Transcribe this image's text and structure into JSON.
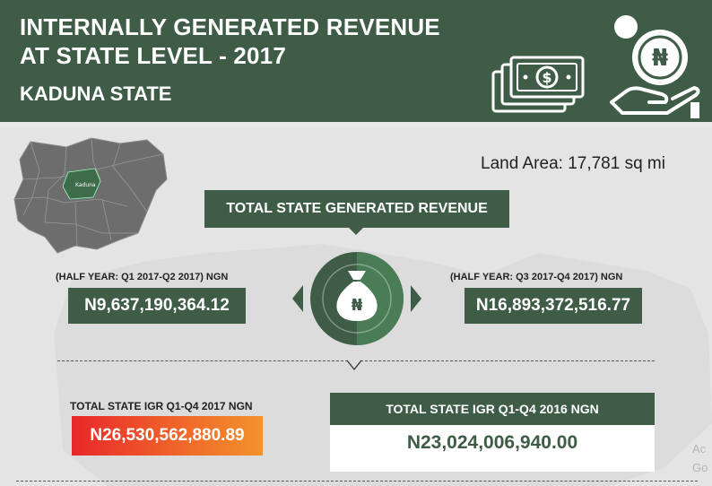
{
  "header": {
    "title_line1": "INTERNALLY GENERATED REVENUE",
    "title_line2": "AT STATE LEVEL - 2017",
    "subtitle": "KADUNA STATE"
  },
  "map": {
    "highlight_label": "Kaduna"
  },
  "land_area": "Land Area: 17,781 sq mi",
  "total_banner": "TOTAL STATE GENERATED REVENUE",
  "half1": {
    "label": "(HALF YEAR: Q1 2017-Q2 2017) NGN",
    "value": "N9,637,190,364.12"
  },
  "half2": {
    "label": "(HALF YEAR: Q3 2017-Q4 2017) NGN",
    "value": "N16,893,372,516.77"
  },
  "igr_2017": {
    "label": "TOTAL STATE IGR Q1-Q4 2017 NGN",
    "value": "N26,530,562,880.89"
  },
  "igr_2016": {
    "label": "TOTAL STATE IGR Q1-Q4 2016 NGN",
    "value": "N23,024,006,940.00"
  },
  "currency_symbol": "₦",
  "icons": [
    "money-stack-icon",
    "coin-hand-icon",
    "money-bag-icon",
    "arrow-left-icon",
    "arrow-right-icon",
    "chevron-down-icon"
  ],
  "colors": {
    "primary": "#3e5c46",
    "accent_mid": "#4a7d56",
    "orange_start": "#e8272a",
    "orange_end": "#f2922b"
  },
  "watermark": {
    "line1": "Ac",
    "line2": "Go"
  }
}
